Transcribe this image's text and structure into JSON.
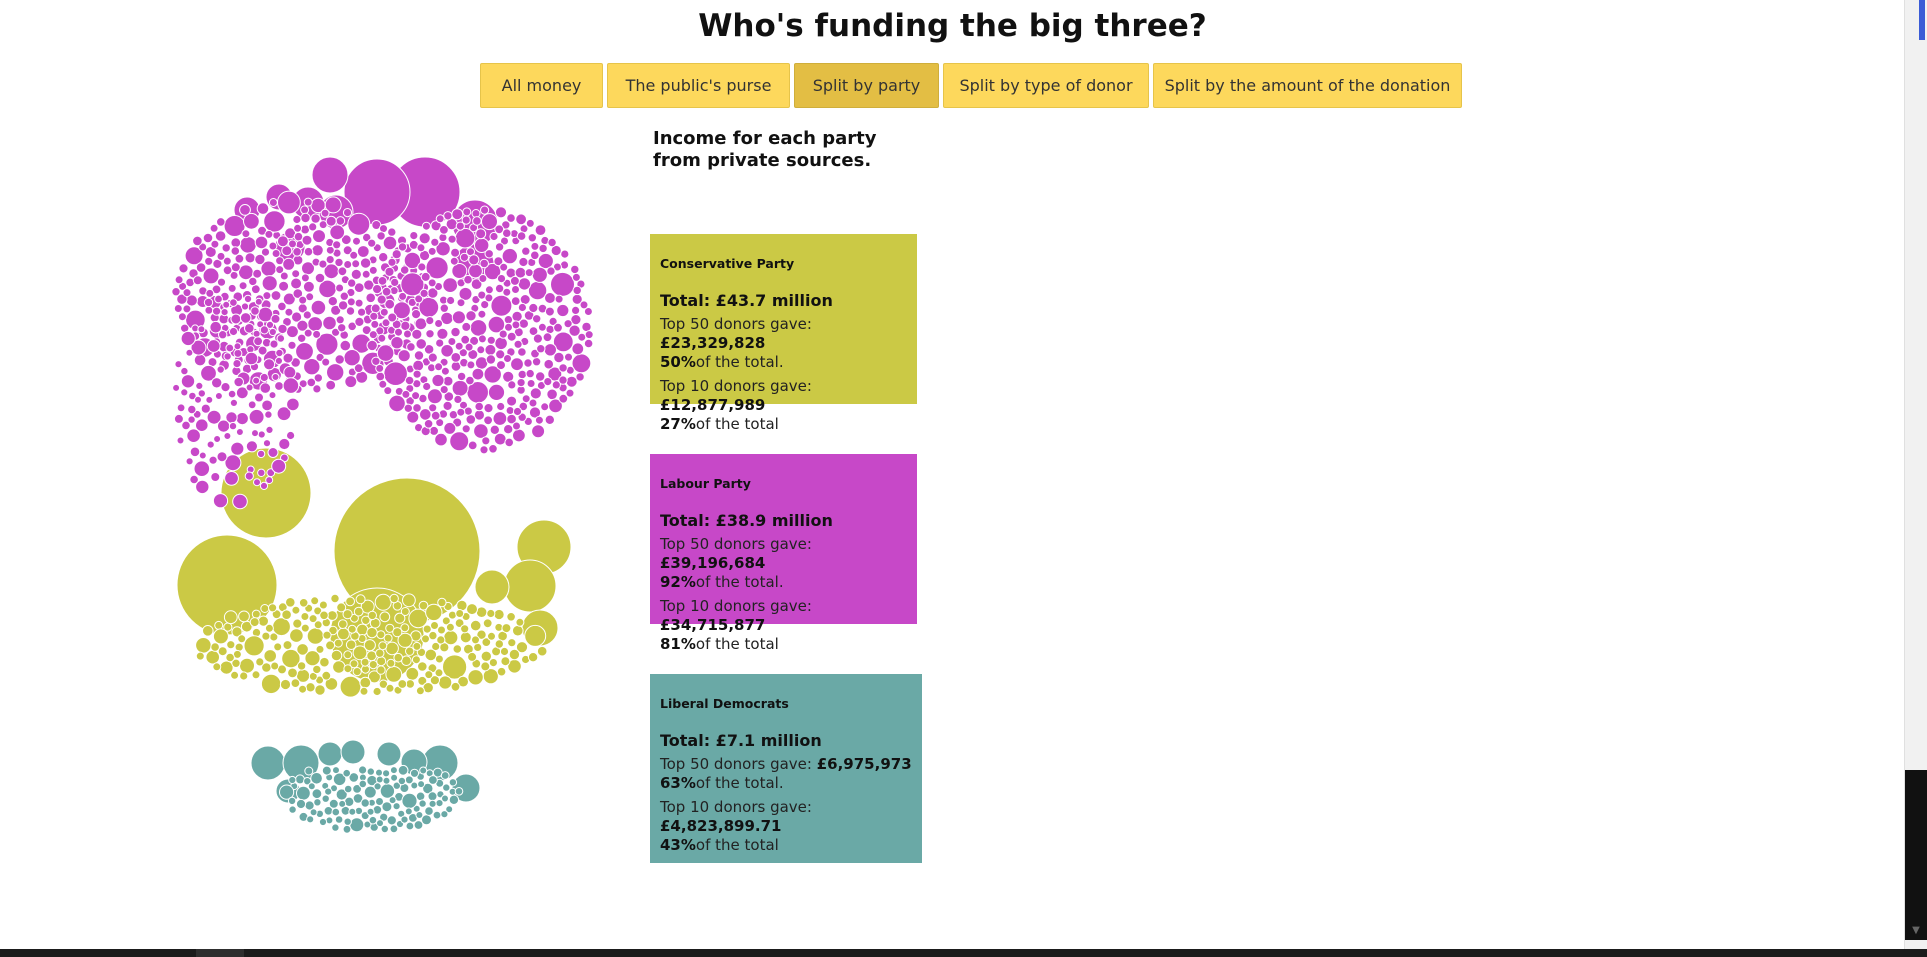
{
  "page": {
    "title": "Who's funding the big three?"
  },
  "nav": {
    "buttons": [
      {
        "label": "All money",
        "active": false
      },
      {
        "label": "The public's purse",
        "active": false
      },
      {
        "label": "Split by party",
        "active": true
      },
      {
        "label": "Split by type of donor",
        "active": false
      },
      {
        "label": "Split by the amount of the donation",
        "active": false
      }
    ]
  },
  "subtitle": "Income for each party from private sources.",
  "colors": {
    "conservative": "#cbc945",
    "labour": "#c748c8",
    "libdem": "#6aa9a6",
    "button": "#fdd85c",
    "button_active": "#e3be44"
  },
  "parties": [
    {
      "name": "Conservative Party",
      "total": "Total: £43.7 million",
      "top50_label": "Top 50 donors gave:",
      "top50_value": "£23,329,828",
      "top50_pct": "50%",
      "top50_suffix": "of the total.",
      "top10_label": "Top 10 donors gave:",
      "top10_value": "£12,877,989",
      "top10_pct": "27%",
      "top10_suffix": "of the total"
    },
    {
      "name": "Labour Party",
      "total": "Total: £38.9 million",
      "top50_label": "Top 50 donors gave:",
      "top50_value": "£39,196,684",
      "top50_pct": "92%",
      "top50_suffix": "of the total.",
      "top10_label": "Top 10 donors gave:",
      "top10_value": "£34,715,877",
      "top10_pct": "81%",
      "top10_suffix": "of the total"
    },
    {
      "name": "Liberal Democrats",
      "total": "Total: £7.1 million",
      "top50_label": "Top 50 donors gave:",
      "top50_value": "£6,975,973",
      "top50_pct": "63%",
      "top50_suffix": "of the total.",
      "top10_label": "Top 10 donors gave:",
      "top10_value": "£4,823,899.71",
      "top10_pct": "43%",
      "top10_suffix": "of the total"
    }
  ]
}
